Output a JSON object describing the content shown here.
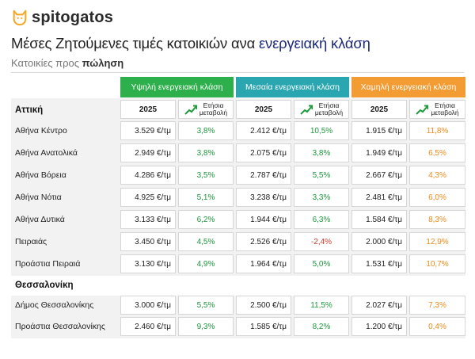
{
  "brand": {
    "name": "spitogatos",
    "accent": "#f5a623"
  },
  "title": {
    "prefix": "Μέσες Ζητούμενες τιμές κατοικιών ανα ",
    "highlight": "ενεργειακή κλάση"
  },
  "subtitle": {
    "prefix": "Κατοικίες προς ",
    "bold": "πώληση"
  },
  "groups": {
    "high": {
      "label": "Υψηλή ενεργειακή κλάση",
      "color": "#2db04b"
    },
    "mid": {
      "label": "Μεσαία ενεργειακή κλάση",
      "color": "#2aa6b0"
    },
    "low": {
      "label": "Χαμηλή ενεργειακή κλάση",
      "color": "#f39c34"
    }
  },
  "col_headers": {
    "year": "2025",
    "change_line1": "Ετήσια",
    "change_line2": "μεταβολή"
  },
  "regions": {
    "attiki": {
      "name": "Αττική",
      "rows": [
        {
          "area": "Αθήνα Κέντρο",
          "high": "3.529 €/τμ",
          "high_pct": "3,8%",
          "mid": "2.412 €/τμ",
          "mid_pct": "10,5%",
          "low": "1.915 €/τμ",
          "low_pct": "11,8%"
        },
        {
          "area": "Αθήνα Ανατολικά",
          "high": "2.949 €/τμ",
          "high_pct": "3,8%",
          "mid": "2.075 €/τμ",
          "mid_pct": "3,8%",
          "low": "1.949 €/τμ",
          "low_pct": "6,5%"
        },
        {
          "area": "Αθήνα Βόρεια",
          "high": "4.286 €/τμ",
          "high_pct": "3,5%",
          "mid": "2.787 €/τμ",
          "mid_pct": "5,5%",
          "low": "2.667 €/τμ",
          "low_pct": "4,3%"
        },
        {
          "area": "Αθήνα Νότια",
          "high": "4.925 €/τμ",
          "high_pct": "5,1%",
          "mid": "3.238 €/τμ",
          "mid_pct": "3,3%",
          "low": "2.481 €/τμ",
          "low_pct": "6,0%"
        },
        {
          "area": "Αθήνα Δυτικά",
          "high": "3.133 €/τμ",
          "high_pct": "6,2%",
          "mid": "1.944 €/τμ",
          "mid_pct": "6,3%",
          "low": "1.584 €/τμ",
          "low_pct": "8,3%"
        },
        {
          "area": "Πειραιάς",
          "high": "3.450 €/τμ",
          "high_pct": "4,5%",
          "mid": "2.526 €/τμ",
          "mid_pct": "-2,4%",
          "low": "2.000 €/τμ",
          "low_pct": "12,9%"
        },
        {
          "area": "Προάστια Πειραιά",
          "high": "3.130 €/τμ",
          "high_pct": "4,9%",
          "mid": "1.964 €/τμ",
          "mid_pct": "5,0%",
          "low": "1.531 €/τμ",
          "low_pct": "10,7%"
        }
      ]
    },
    "thessaloniki": {
      "name": "Θεσσαλονίκη",
      "rows": [
        {
          "area": "Δήμος Θεσσαλονίκης",
          "high": "3.000 €/τμ",
          "high_pct": "5,5%",
          "mid": "2.500 €/τμ",
          "mid_pct": "11,5%",
          "low": "2.027 €/τμ",
          "low_pct": "7,3%"
        },
        {
          "area": "Προάστια Θεσσαλονίκης",
          "high": "2.460 €/τμ",
          "high_pct": "9,3%",
          "mid": "1.585 €/τμ",
          "mid_pct": "8,2%",
          "low": "1.200 €/τμ",
          "low_pct": "0,4%"
        }
      ]
    }
  }
}
